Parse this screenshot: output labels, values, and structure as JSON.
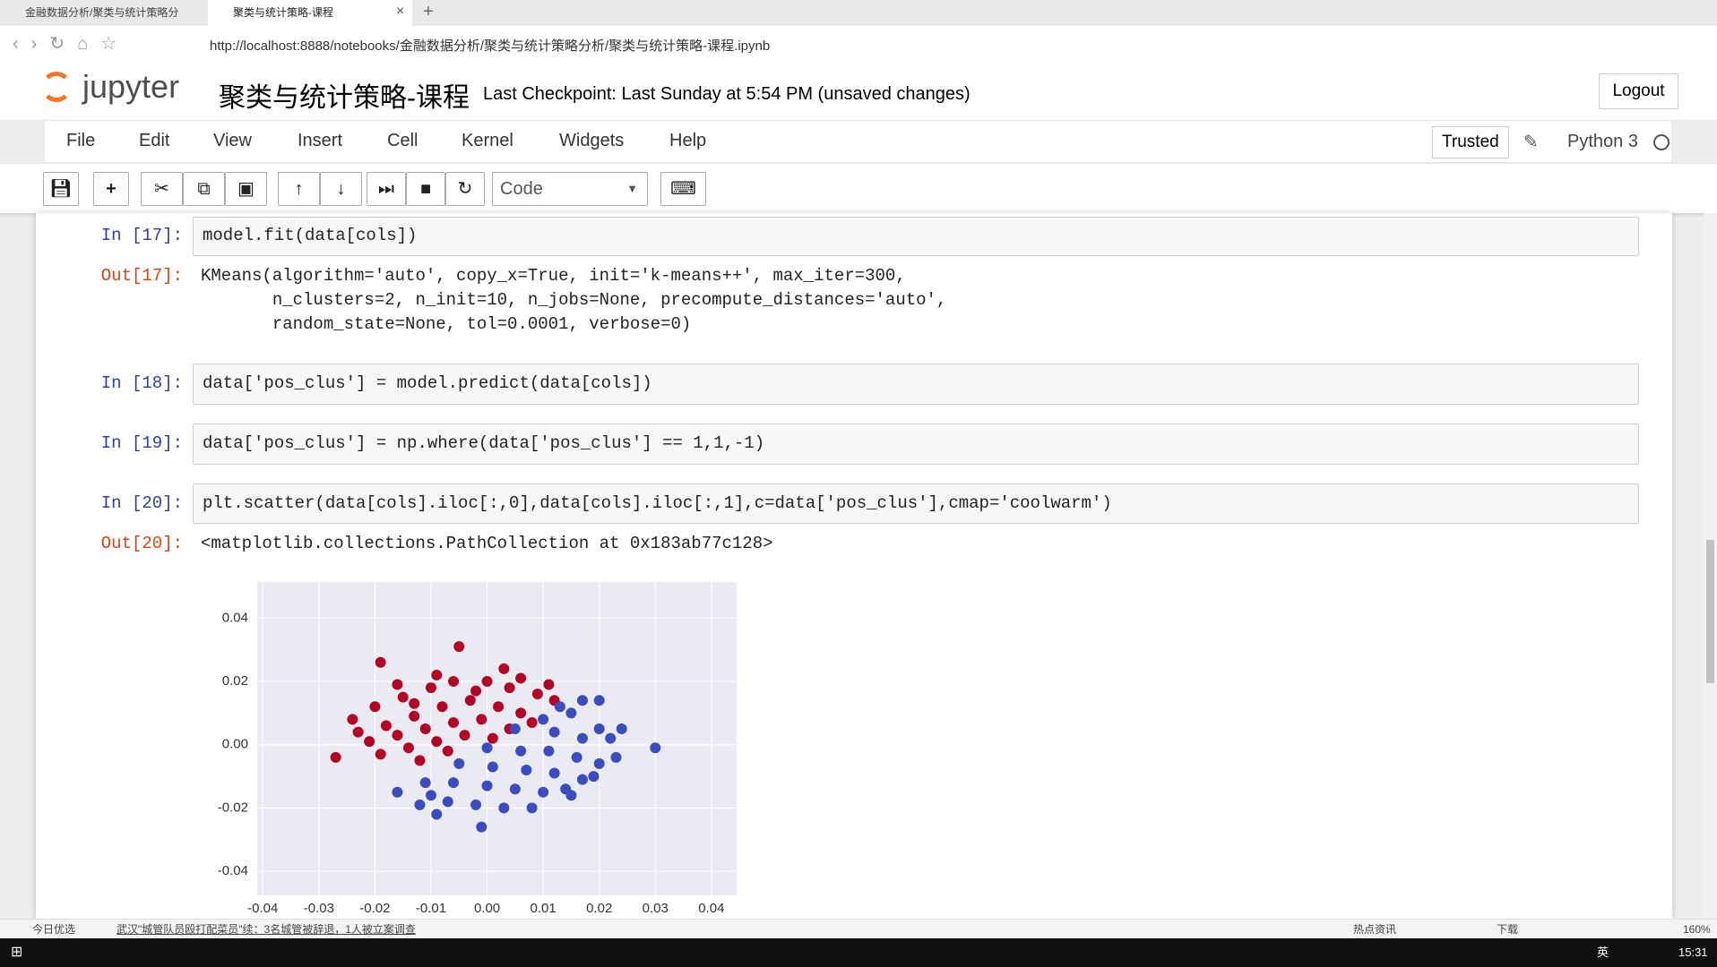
{
  "browser": {
    "tabs": [
      "金融数据分析/聚类与统计策略分",
      "聚类与统计策略-课程"
    ],
    "url": "http://localhost:8888/notebooks/金融数据分析/聚类与统计策略分析/聚类与统计策略-课程.ipynb"
  },
  "header": {
    "logo": "jupyter",
    "notebook_title": "聚类与统计策略-课程",
    "checkpoint": "Last Checkpoint: Last Sunday at 5:54 PM (unsaved changes)",
    "logout": "Logout",
    "trusted": "Trusted",
    "kernel": "Python 3"
  },
  "menu": [
    "File",
    "Edit",
    "View",
    "Insert",
    "Cell",
    "Kernel",
    "Widgets",
    "Help"
  ],
  "toolbar": {
    "cell_type": "Code"
  },
  "cells": [
    {
      "prompt": "In [17]:",
      "code": "model.fit(data[cols])"
    },
    {
      "prompt": "Out[17]:",
      "output": [
        "KMeans(algorithm='auto', copy_x=True, init='k-means++', max_iter=300,",
        "       n_clusters=2, n_init=10, n_jobs=None, precompute_distances='auto',",
        "       random_state=None, tol=0.0001, verbose=0)"
      ]
    },
    {
      "prompt": "In [18]:",
      "code": "data['pos_clus'] = model.predict(data[cols])"
    },
    {
      "prompt": "In [19]:",
      "code": "data['pos_clus'] = np.where(data['pos_clus'] == 1,1,-1)"
    },
    {
      "prompt": "In [20]:",
      "code": "plt.scatter(data[cols].iloc[:,0],data[cols].iloc[:,1],c=data['pos_clus'],cmap='coolwarm')"
    },
    {
      "prompt": "Out[20]:",
      "output": [
        "<matplotlib.collections.PathCollection at 0x183ab77c128>"
      ]
    }
  ],
  "chart_data": {
    "type": "scatter",
    "background": "#eaeaf2",
    "grid": true,
    "xlim": [
      -0.041,
      0.0445
    ],
    "ylim": [
      -0.0476,
      0.0514
    ],
    "xticks": [
      -0.04,
      -0.03,
      -0.02,
      -0.01,
      {
        "value": 0,
        "label": "0.00"
      },
      0.01,
      0.02,
      0.03,
      0.04
    ],
    "yticks": [
      -0.04,
      -0.02,
      {
        "value": 0,
        "label": "0.00"
      },
      0.02,
      0.04
    ],
    "series": [
      {
        "color": "#b40426",
        "x": [
          -0.019,
          -0.005,
          0.003,
          -0.024,
          -0.027,
          -0.02,
          -0.015,
          -0.01,
          -0.006,
          0,
          0.004,
          0.009,
          0.012,
          -0.018,
          -0.013,
          -0.008,
          -0.003,
          0.002,
          0.006,
          -0.021,
          -0.016,
          -0.011,
          -0.006,
          -0.001,
          0.004,
          -0.019,
          -0.014,
          -0.009,
          -0.004,
          -0.012,
          -0.016,
          -0.009,
          0.006,
          0.011,
          -0.023,
          0.008,
          -0.002,
          -0.013,
          -0.007,
          0.001
        ],
        "values": [
          0.026,
          0.031,
          0.024,
          0.008,
          -0.004,
          0.012,
          0.015,
          0.018,
          0.02,
          0.02,
          0.018,
          0.016,
          0.014,
          0.006,
          0.009,
          0.012,
          0.014,
          0.012,
          0.01,
          0.001,
          0.003,
          0.005,
          0.007,
          0.008,
          0.005,
          -0.003,
          -0.001,
          0.001,
          0.003,
          -0.005,
          0.019,
          0.022,
          0.021,
          0.019,
          0.004,
          0.007,
          0.017,
          0.013,
          -0.002,
          0.002
        ]
      },
      {
        "color": "#3b4cc0",
        "x": [
          0.03,
          0.02,
          0.02,
          0.024,
          0.015,
          0.01,
          0.005,
          0.012,
          0.017,
          0.022,
          0,
          0.006,
          0.011,
          0.016,
          0.02,
          -0.005,
          0.001,
          0.007,
          0.012,
          0.017,
          -0.011,
          -0.006,
          0,
          0.005,
          0.01,
          0.015,
          -0.016,
          -0.012,
          -0.007,
          -0.002,
          0.003,
          0.008,
          -0.001,
          -0.009,
          0.014,
          0.019,
          0.023,
          0.013,
          -0.01,
          0.017
        ],
        "values": [
          -0.001,
          0.014,
          0.005,
          0.005,
          0.01,
          0.008,
          0.005,
          0.004,
          0.002,
          0.002,
          -0.001,
          -0.002,
          -0.002,
          -0.004,
          -0.006,
          -0.006,
          -0.007,
          -0.008,
          -0.009,
          -0.011,
          -0.012,
          -0.012,
          -0.013,
          -0.014,
          -0.015,
          -0.016,
          -0.015,
          -0.019,
          -0.018,
          -0.019,
          -0.02,
          -0.02,
          -0.026,
          -0.022,
          -0.014,
          -0.01,
          -0.004,
          0.012,
          -0.016,
          0.014
        ]
      }
    ]
  },
  "status_bar": {
    "left": "今日优选",
    "news": "武汉\"城管队员殴打配菜员\"续：3名城管被辞退，1人被立案调查",
    "hot": "热点资讯",
    "download": "下载",
    "zoom": "160%"
  },
  "taskbar": {
    "ime": "英",
    "clock": "15:31"
  }
}
